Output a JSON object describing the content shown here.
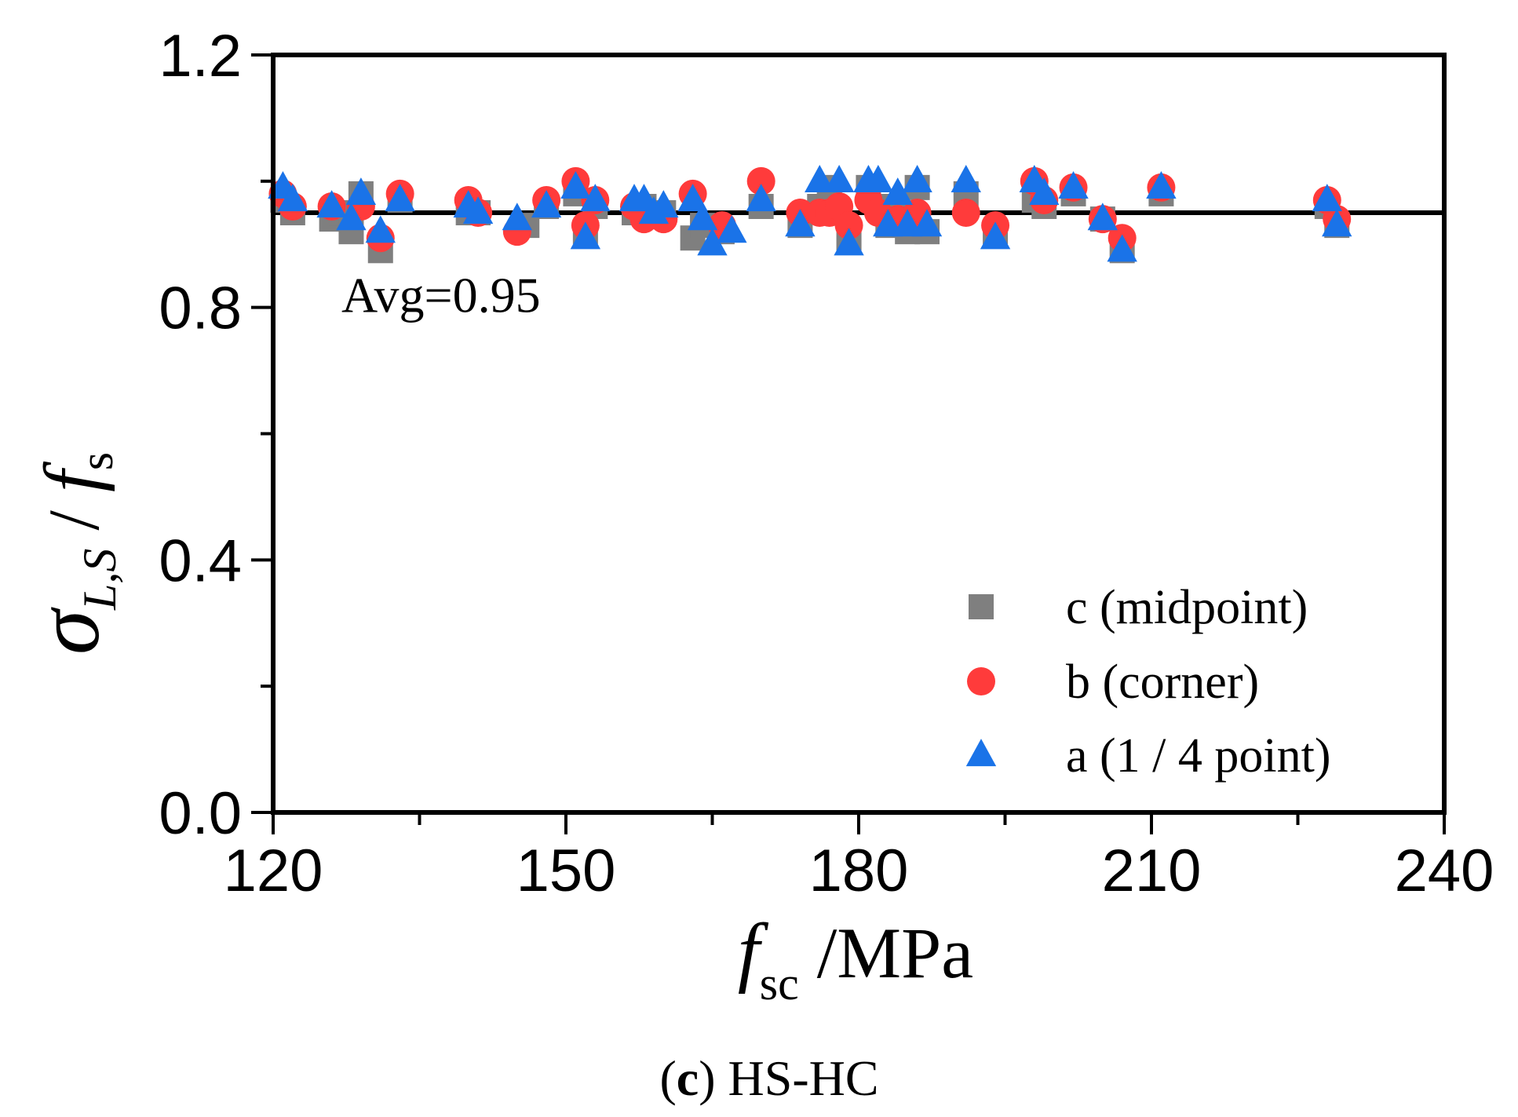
{
  "chart_data": {
    "type": "scatter",
    "caption": {
      "letter": "c",
      "open": "(",
      "close": ")",
      "text": " HS-HC"
    },
    "xlabel": {
      "symbol": "f",
      "subscript": "sc",
      "unit": " /MPa"
    },
    "ylabel": {
      "symbol": "σ",
      "subscript": "L,S",
      "slash": " / ",
      "symbol2": "f",
      "subscript2": "s"
    },
    "xlim": [
      120,
      240
    ],
    "ylim": [
      0,
      1.2
    ],
    "xticks": [
      120,
      150,
      180,
      210,
      240
    ],
    "xtick_labels": [
      "120",
      "150",
      "180",
      "210",
      "240"
    ],
    "xminor": [
      135,
      165,
      195,
      225
    ],
    "yticks": [
      0,
      0.4,
      0.8,
      1.2
    ],
    "ytick_labels": [
      "0.0",
      "0.4",
      "0.8",
      "1.2"
    ],
    "yminor": [
      0.2,
      0.6,
      1.0
    ],
    "reference_line": {
      "y": 0.95,
      "label": "Avg=0.95",
      "label_x": 127,
      "label_y": 0.82
    },
    "legend_position": "bottom-right",
    "colors": {
      "c": "#7f7f7f",
      "b": "#ff3b3b",
      "a": "#1a73e8",
      "line": "#000000",
      "axis": "#000000"
    },
    "series": [
      {
        "key": "c",
        "name": "c (midpoint)",
        "marker": "square",
        "points": [
          [
            121,
            0.97
          ],
          [
            122,
            0.95
          ],
          [
            126,
            0.94
          ],
          [
            127,
            0.95
          ],
          [
            128,
            0.92
          ],
          [
            129,
            0.98
          ],
          [
            131,
            0.89
          ],
          [
            133,
            0.97
          ],
          [
            140,
            0.95
          ],
          [
            141,
            0.95
          ],
          [
            146,
            0.93
          ],
          [
            148,
            0.96
          ],
          [
            151,
            0.98
          ],
          [
            152,
            0.92
          ],
          [
            153,
            0.96
          ],
          [
            157,
            0.95
          ],
          [
            158,
            0.96
          ],
          [
            160,
            0.95
          ],
          [
            163,
            0.91
          ],
          [
            164,
            0.93
          ],
          [
            166,
            0.92
          ],
          [
            170,
            0.96
          ],
          [
            174,
            0.93
          ],
          [
            176,
            0.96
          ],
          [
            177,
            0.99
          ],
          [
            179,
            0.91
          ],
          [
            181,
            0.99
          ],
          [
            182,
            0.96
          ],
          [
            183,
            0.93
          ],
          [
            184,
            0.95
          ],
          [
            185,
            0.92
          ],
          [
            186,
            0.99
          ],
          [
            187,
            0.92
          ],
          [
            191,
            0.98
          ],
          [
            194,
            0.92
          ],
          [
            198,
            0.97
          ],
          [
            199,
            0.96
          ],
          [
            202,
            0.98
          ],
          [
            205,
            0.94
          ],
          [
            207,
            0.89
          ],
          [
            211,
            0.98
          ],
          [
            228,
            0.96
          ],
          [
            229,
            0.93
          ]
        ]
      },
      {
        "key": "b",
        "name": "b (corner)",
        "marker": "circle",
        "points": [
          [
            121,
            0.98
          ],
          [
            122,
            0.96
          ],
          [
            126,
            0.96
          ],
          [
            129,
            0.96
          ],
          [
            131,
            0.91
          ],
          [
            133,
            0.98
          ],
          [
            140,
            0.97
          ],
          [
            141,
            0.95
          ],
          [
            145,
            0.92
          ],
          [
            148,
            0.97
          ],
          [
            151,
            1.0
          ],
          [
            152,
            0.93
          ],
          [
            153,
            0.97
          ],
          [
            157,
            0.96
          ],
          [
            158,
            0.94
          ],
          [
            160,
            0.94
          ],
          [
            163,
            0.98
          ],
          [
            166,
            0.93
          ],
          [
            170,
            1.0
          ],
          [
            174,
            0.95
          ],
          [
            176,
            0.95
          ],
          [
            177,
            0.95
          ],
          [
            178,
            0.96
          ],
          [
            179,
            0.93
          ],
          [
            181,
            0.97
          ],
          [
            182,
            0.95
          ],
          [
            184,
            0.94
          ],
          [
            186,
            0.95
          ],
          [
            191,
            0.95
          ],
          [
            194,
            0.93
          ],
          [
            198,
            1.0
          ],
          [
            199,
            0.97
          ],
          [
            202,
            0.99
          ],
          [
            205,
            0.94
          ],
          [
            207,
            0.91
          ],
          [
            211,
            0.99
          ],
          [
            228,
            0.97
          ],
          [
            229,
            0.94
          ]
        ]
      },
      {
        "key": "a",
        "name": "a (1 / 4 point)",
        "marker": "triangle",
        "points": [
          [
            121,
            0.99
          ],
          [
            122,
            0.97
          ],
          [
            126,
            0.96
          ],
          [
            128,
            0.94
          ],
          [
            129,
            0.98
          ],
          [
            131,
            0.92
          ],
          [
            133,
            0.97
          ],
          [
            140,
            0.96
          ],
          [
            141,
            0.95
          ],
          [
            145,
            0.94
          ],
          [
            148,
            0.96
          ],
          [
            151,
            0.99
          ],
          [
            152,
            0.91
          ],
          [
            153,
            0.97
          ],
          [
            157,
            0.97
          ],
          [
            158,
            0.97
          ],
          [
            159,
            0.95
          ],
          [
            160,
            0.96
          ],
          [
            163,
            0.97
          ],
          [
            164,
            0.94
          ],
          [
            165,
            0.9
          ],
          [
            167,
            0.92
          ],
          [
            170,
            0.97
          ],
          [
            174,
            0.93
          ],
          [
            176,
            1.0
          ],
          [
            178,
            1.0
          ],
          [
            179,
            0.9
          ],
          [
            181,
            1.0
          ],
          [
            182,
            1.0
          ],
          [
            183,
            0.93
          ],
          [
            184,
            0.98
          ],
          [
            185,
            0.93
          ],
          [
            186,
            1.0
          ],
          [
            187,
            0.93
          ],
          [
            191,
            1.0
          ],
          [
            194,
            0.91
          ],
          [
            198,
            1.0
          ],
          [
            199,
            0.98
          ],
          [
            202,
            0.99
          ],
          [
            205,
            0.94
          ],
          [
            207,
            0.89
          ],
          [
            211,
            0.99
          ],
          [
            228,
            0.97
          ],
          [
            229,
            0.93
          ]
        ]
      }
    ]
  }
}
